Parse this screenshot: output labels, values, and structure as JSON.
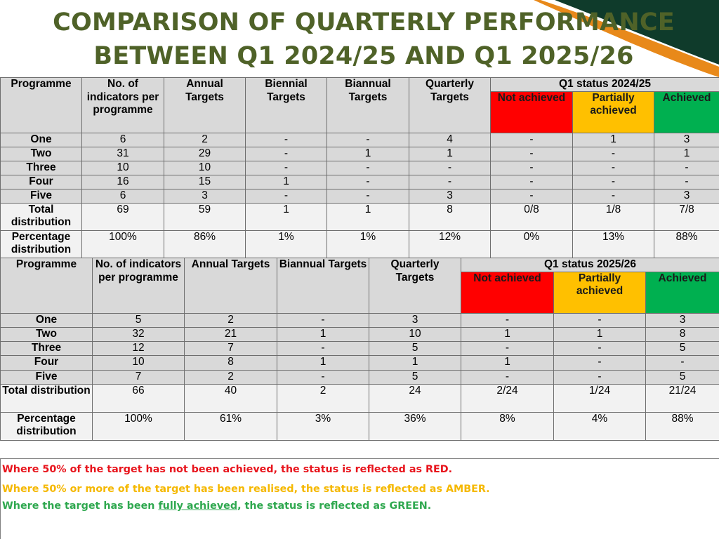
{
  "title": {
    "line1": "COMPARISON OF QUARTERLY PERFORMANCE",
    "line2": "BETWEEN Q1 2024/25 AND Q1 2025/26"
  },
  "colors": {
    "title": "#4f6228",
    "not_achieved": "#ff0000",
    "partially_achieved": "#ffc000",
    "achieved": "#00b050",
    "header_bg": "#d9d9d9",
    "deco_dark_green": "#0f3b2b",
    "deco_orange": "#e8891a"
  },
  "table1": {
    "headers": {
      "programme": "Programme",
      "indicators": "No. of indicators per programme",
      "annual": "Annual Targets",
      "biennial": "Biennial Targets",
      "biannual": "Biannual Targets",
      "quarterly": "Quarterly Targets",
      "status": "Q1 status 2024/25",
      "not_achieved": "Not achieved",
      "partially": "Partially achieved",
      "achieved": "Achieved"
    },
    "rows": [
      {
        "programme": "One",
        "indicators": "6",
        "annual": "2",
        "biennial": "-",
        "biannual": "-",
        "quarterly": "4",
        "not_achieved": "-",
        "partially": "1",
        "achieved": "3"
      },
      {
        "programme": "Two",
        "indicators": "31",
        "annual": "29",
        "biennial": "-",
        "biannual": "1",
        "quarterly": "1",
        "not_achieved": "-",
        "partially": "-",
        "achieved": "1"
      },
      {
        "programme": "Three",
        "indicators": "10",
        "annual": "10",
        "biennial": "-",
        "biannual": "-",
        "quarterly": "-",
        "not_achieved": "-",
        "partially": "-",
        "achieved": "-"
      },
      {
        "programme": "Four",
        "indicators": "16",
        "annual": "15",
        "biennial": "1",
        "biannual": "-",
        "quarterly": "-",
        "not_achieved": "-",
        "partially": "-",
        "achieved": "-"
      },
      {
        "programme": "Five",
        "indicators": "6",
        "annual": "3",
        "biennial": "-",
        "biannual": "-",
        "quarterly": "3",
        "not_achieved": "-",
        "partially": "-",
        "achieved": "3"
      },
      {
        "programme": "Total distribution",
        "indicators": "69",
        "annual": "59",
        "biennial": "1",
        "biannual": "1",
        "quarterly": "8",
        "not_achieved": "0/8",
        "partially": "1/8",
        "achieved": "7/8"
      },
      {
        "programme": "Percentage distribution",
        "indicators": "100%",
        "annual": "86%",
        "biennial": "1%",
        "biannual": "1%",
        "quarterly": "12%",
        "not_achieved": "0%",
        "partially": "13%",
        "achieved": "88%"
      }
    ]
  },
  "table2": {
    "headers": {
      "programme": "Programme",
      "indicators": "No. of indicators per programme",
      "annual": "Annual Targets",
      "biannual": "Biannual Targets",
      "quarterly": "Quarterly Targets",
      "status": "Q1 status 2025/26",
      "not_achieved": "Not achieved",
      "partially": "Partially achieved",
      "achieved": "Achieved"
    },
    "rows": [
      {
        "programme": "One",
        "indicators": "5",
        "annual": "2",
        "biannual": "-",
        "quarterly": "3",
        "not_achieved": "-",
        "partially": "-",
        "achieved": "3"
      },
      {
        "programme": "Two",
        "indicators": "32",
        "annual": "21",
        "biannual": "1",
        "quarterly": "10",
        "not_achieved": "1",
        "partially": "1",
        "achieved": "8"
      },
      {
        "programme": "Three",
        "indicators": "12",
        "annual": "7",
        "biannual": "-",
        "quarterly": "5",
        "not_achieved": "-",
        "partially": "-",
        "achieved": "5"
      },
      {
        "programme": "Four",
        "indicators": "10",
        "annual": "8",
        "biannual": "1",
        "quarterly": "1",
        "not_achieved": "1",
        "partially": "-",
        "achieved": "-"
      },
      {
        "programme": "Five",
        "indicators": "7",
        "annual": "2",
        "biannual": "-",
        "quarterly": "5",
        "not_achieved": "-",
        "partially": "-",
        "achieved": "5"
      },
      {
        "programme": "Total distribution",
        "indicators": "66",
        "annual": "40",
        "biannual": "2",
        "quarterly": "24",
        "not_achieved": "2/24",
        "partially": "1/24",
        "achieved": "21/24"
      },
      {
        "programme": "Percentage distribution",
        "indicators": "100%",
        "annual": "61%",
        "biannual": "3%",
        "quarterly": "36%",
        "not_achieved": "8%",
        "partially": "4%",
        "achieved": "88%"
      }
    ]
  },
  "legend": {
    "red": "Where 50% of the target has not been achieved, the status is reflected as RED.",
    "amber": "Where 50% or more of the target has been realised, the status is reflected as AMBER.",
    "green_pre": "Where the target has been ",
    "green_underlined": "fully achieved",
    "green_post": ", the status is reflected as GREEN."
  }
}
